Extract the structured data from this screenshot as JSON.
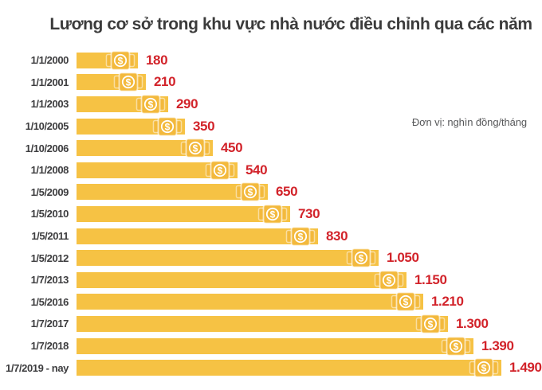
{
  "title": "Lương cơ sở trong khu vực nhà nước điều chỉnh qua các năm",
  "unit_note": "Đơn vị: nghìn đồng/tháng",
  "colors": {
    "bar": "#F6C244",
    "icon_note": "#F3B93C",
    "icon_outline": "#FFFFFF",
    "value_text": "#D2232A",
    "title_text": "#3B3B3B",
    "category_text": "#3D3D3F",
    "note_text": "#57585A",
    "background": "#FFFFFF"
  },
  "icons": {
    "bar_end_icon": "dollar-banknote-icon"
  },
  "chart_data": {
    "type": "bar",
    "orientation": "horizontal",
    "title": "Lương cơ sở trong khu vực nhà nước điều chỉnh qua các năm",
    "xlabel": "",
    "ylabel": "",
    "unit": "nghìn đồng/tháng",
    "legend": null,
    "grid": false,
    "xlim": [
      0,
      1560
    ],
    "categories": [
      "1/1/2000",
      "1/1/2001",
      "1/1/2003",
      "1/10/2005",
      "1/10/2006",
      "1/1/2008",
      "1/5/2009",
      "1/5/2010",
      "1/5/2011",
      "1/5/2012",
      "1/7/2013",
      "1/5/2016",
      "1/7/2017",
      "1/7/2018",
      "1/7/2019 - nay"
    ],
    "values": [
      180,
      210,
      290,
      350,
      450,
      540,
      650,
      730,
      830,
      1050,
      1150,
      1210,
      1300,
      1390,
      1490
    ],
    "value_labels": [
      "180",
      "210",
      "290",
      "350",
      "450",
      "540",
      "650",
      "730",
      "830",
      "1.050",
      "1.150",
      "1.210",
      "1.300",
      "1.390",
      "1.490"
    ]
  }
}
